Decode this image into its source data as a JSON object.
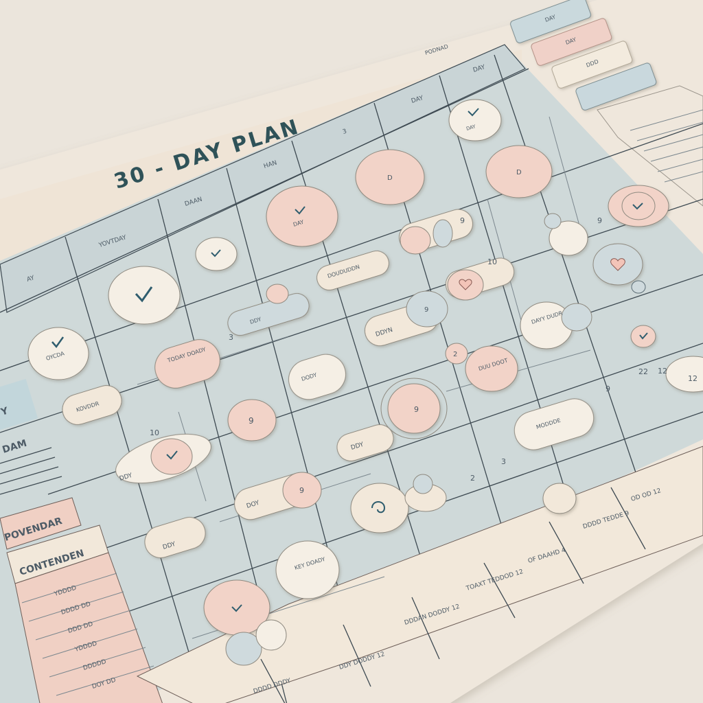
{
  "header": {
    "title": "30 - DAY PLAN",
    "corner_label": "PODNAD"
  },
  "columns": [
    "AY",
    "YOVTDAY",
    "DAAN",
    "HAN",
    "3",
    "DAY",
    "DAY"
  ],
  "tabs": [
    "DAY",
    "DAY",
    "DDD",
    ""
  ],
  "sidebar": {
    "label_a": "Y",
    "label_b": "DAM",
    "heading_1": "POVENDAR",
    "heading_2": "CONTENDEN",
    "rows": [
      "YDDDD",
      "DDDD DD",
      "DDD DD",
      "YDDDD",
      "DDDDD",
      "DOY DD",
      "DDDD"
    ]
  },
  "bubbles": {
    "b1": "OYCDA",
    "b2": "DAY",
    "b3": "DAY",
    "b4": "DAYY DUDR",
    "b5": "TODAY DOADY",
    "b6": "KEY DOADY",
    "b7": "DODDY",
    "b8": "DUU DOOT",
    "b9": "DODY",
    "b10": "9",
    "b11": "9",
    "b12": "2",
    "b13": "KOVDDR",
    "b14": "DOUDUDDN",
    "b15": "DDY",
    "b16": "DDY",
    "b17": "DDY",
    "b18": "DOY",
    "b19": "DDY",
    "b20": "MODDDE",
    "b21": "D",
    "b22": "D",
    "b23": "DDYN",
    "b24": "9"
  },
  "numbers": [
    "3",
    "9",
    "9",
    "10",
    "10",
    "12",
    "12",
    "22",
    "3",
    "9",
    "2",
    "9"
  ],
  "footer": [
    "DDDAN DODDY 12",
    "TOAXT TEDDOD 12",
    "OF DAAHD 4",
    "DDDD TEDDE 9",
    "OD OD 12",
    "DDY DODDY 12",
    "DDDD DDDY"
  ]
}
